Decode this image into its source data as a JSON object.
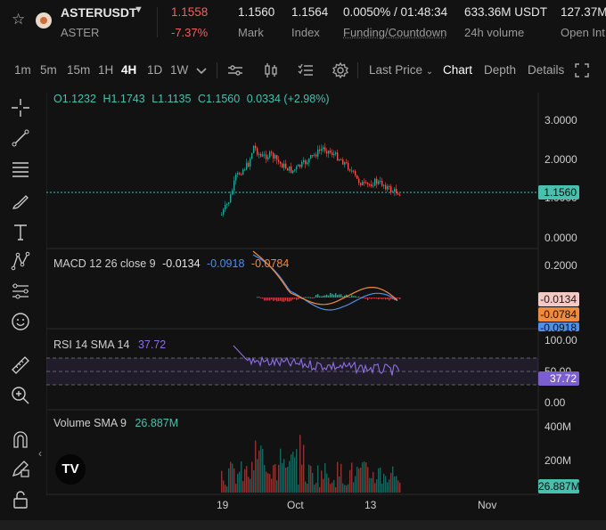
{
  "header": {
    "symbol": "ASTERUSDT",
    "dropdown_icon": "caret-down-icon",
    "base_asset": "ASTER",
    "last_price": "1.1558",
    "change_pct": "-7.37%",
    "stats": [
      {
        "value": "1.1560",
        "label": "Mark"
      },
      {
        "value": "1.1564",
        "label": "Index"
      },
      {
        "value": "0.0050% / 01:48:34",
        "label": "Funding/Countdown"
      },
      {
        "value": "633.36M USDT",
        "label": "24h volume"
      },
      {
        "value": "127.37M",
        "label": "Open Int"
      }
    ]
  },
  "toolbar": {
    "timeframes": [
      "1m",
      "5m",
      "15m",
      "1H",
      "4H",
      "1D",
      "1W"
    ],
    "active_timeframe": "4H",
    "price_type": "Last Price",
    "views": [
      "Chart",
      "Depth",
      "Details"
    ],
    "active_view": "Chart",
    "icons": [
      "more-intervals-chevron-icon",
      "indicators-icon",
      "candle-type-icon",
      "drawing-list-icon",
      "settings-gear-icon",
      "fullscreen-icon"
    ]
  },
  "left_tools": [
    "crosshair-icon",
    "trend-line-icon",
    "horizontal-lines-icon",
    "brush-icon",
    "text-icon",
    "pattern-icon",
    "measure-list-icon",
    "emoji-icon",
    "ruler-icon",
    "zoom-in-icon",
    "magnet-icon",
    "lock-pencil-icon",
    "unlock-icon"
  ],
  "colors": {
    "up": "#26a69a",
    "down": "#ef5350",
    "macd": "#4f8fe6",
    "signal": "#f08a3c",
    "rsi": "#8f6fe0",
    "accent": "#4bbfae"
  },
  "chart": {
    "ohlc": {
      "o": "O1.1232",
      "h": "H1.1743",
      "l": "L1.1135",
      "c": "C1.1560",
      "change": "0.0334 (+2.98%)"
    },
    "price_axis": [
      "3.0000",
      "2.0000",
      "1.0000",
      "0.0000"
    ],
    "current_price_tag": "1.1560",
    "macd": {
      "label": "MACD 12 26 close 9",
      "hist": "-0.0134",
      "macd": "-0.0918",
      "signal": "-0.0784",
      "axis": [
        "0.2000"
      ]
    },
    "rsi": {
      "label": "RSI 14 SMA 14",
      "value": "37.72",
      "axis": [
        "100.00",
        "50.00",
        "0.00"
      ]
    },
    "volume": {
      "label": "Volume SMA 9",
      "value": "26.887M",
      "axis": [
        "400M",
        "200M"
      ]
    },
    "x_axis": [
      "19",
      "Oct",
      "13",
      "Nov"
    ]
  }
}
